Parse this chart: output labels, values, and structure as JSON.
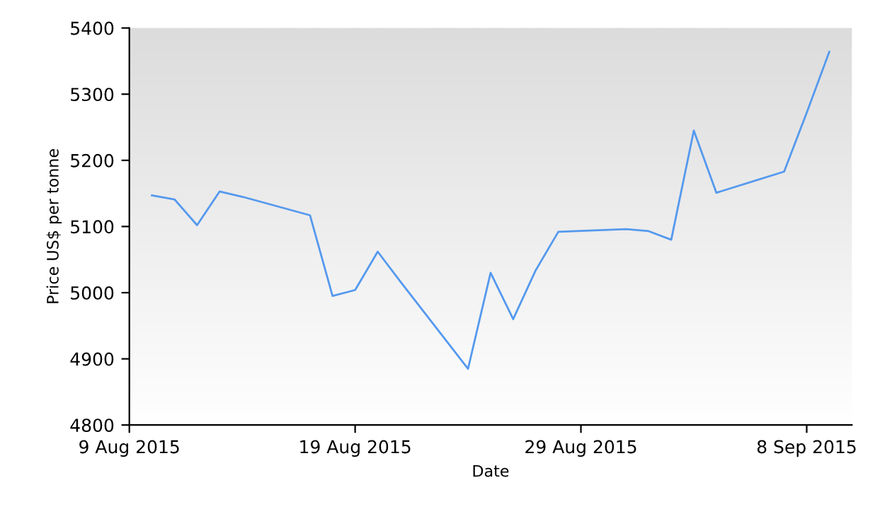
{
  "chart_data": {
    "type": "line",
    "xlabel": "Date",
    "ylabel": "Price US$ per tonne",
    "x": [
      "2015-08-10",
      "2015-08-11",
      "2015-08-12",
      "2015-08-13",
      "2015-08-14",
      "2015-08-17",
      "2015-08-18",
      "2015-08-19",
      "2015-08-20",
      "2015-08-21",
      "2015-08-24",
      "2015-08-25",
      "2015-08-26",
      "2015-08-27",
      "2015-08-28",
      "2015-08-31",
      "2015-09-01",
      "2015-09-02",
      "2015-09-03",
      "2015-09-04",
      "2015-09-07",
      "2015-09-08",
      "2015-09-09"
    ],
    "series": [
      {
        "color": "#5599ee",
        "values": [
          5147,
          5141,
          5102,
          5153,
          5145,
          5117,
          4995,
          5004,
          5062,
          5017,
          4885,
          5030,
          4960,
          5034,
          5092,
          5096,
          5093,
          5080,
          5245,
          5151,
          5183,
          5272,
          5364
        ]
      }
    ],
    "xlim": [
      "2015-08-09",
      "2015-09-10"
    ],
    "xticks": [
      {
        "value": "2015-08-09",
        "label": "9 Aug 2015"
      },
      {
        "value": "2015-08-19",
        "label": "19 Aug 2015"
      },
      {
        "value": "2015-08-29",
        "label": "29 Aug 2015"
      },
      {
        "value": "2015-09-08",
        "label": "8 Sep 2015"
      }
    ],
    "ylim": [
      4800,
      5400
    ],
    "yticks": [
      4800,
      4900,
      5000,
      5100,
      5200,
      5300,
      5400
    ],
    "grid": false,
    "legend": false,
    "marker": "none",
    "line_style": "solid"
  }
}
